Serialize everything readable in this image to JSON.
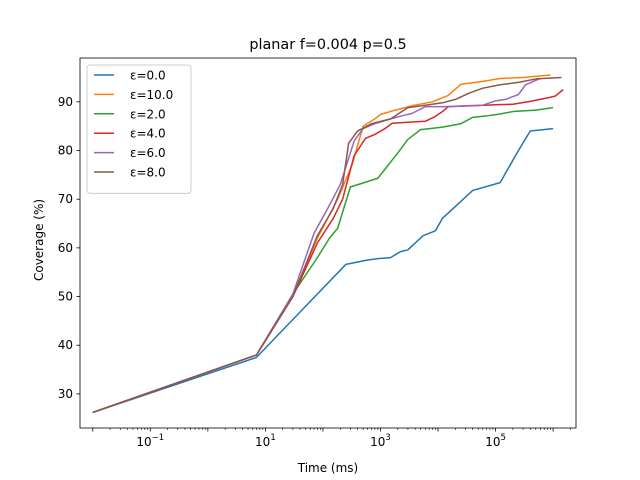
{
  "chart_data": {
    "type": "line",
    "title": "planar f=0.004 p=0.5",
    "xlabel": "Time (ms)",
    "ylabel": "Coverage (%)",
    "xscale": "log",
    "xlim": [
      0.006,
      2500000
    ],
    "ylim": [
      23,
      99
    ],
    "xticks": [
      {
        "value": 0.1,
        "base": "10",
        "exp": "−1"
      },
      {
        "value": 10,
        "base": "10",
        "exp": "1"
      },
      {
        "value": 1000,
        "base": "10",
        "exp": "3"
      },
      {
        "value": 100000,
        "base": "10",
        "exp": "5"
      }
    ],
    "yticks": [
      {
        "value": 30,
        "label": "30"
      },
      {
        "value": 40,
        "label": "40"
      },
      {
        "value": 50,
        "label": "50"
      },
      {
        "value": 60,
        "label": "60"
      },
      {
        "value": 70,
        "label": "70"
      },
      {
        "value": 80,
        "label": "80"
      },
      {
        "value": 90,
        "label": "90"
      }
    ],
    "grid": false,
    "legend_position": "top-left",
    "series": [
      {
        "name": "ε=0.0",
        "color": "#1f77b4",
        "points": [
          [
            0.01,
            26.2
          ],
          [
            7,
            37.5
          ],
          [
            50,
            48
          ],
          [
            250,
            56.6
          ],
          [
            600,
            57.5
          ],
          [
            900,
            57.8
          ],
          [
            1500,
            58
          ],
          [
            2200,
            59.2
          ],
          [
            3000,
            59.6
          ],
          [
            5500,
            62.5
          ],
          [
            9000,
            63.5
          ],
          [
            12000,
            66.1
          ],
          [
            18000,
            68
          ],
          [
            40000,
            71.8
          ],
          [
            120000,
            73.4
          ],
          [
            250000,
            80
          ],
          [
            400000,
            84
          ],
          [
            1000000,
            84.5
          ]
        ]
      },
      {
        "name": "ε=10.0",
        "color": "#ff7f0e",
        "points": [
          [
            0.01,
            26.2
          ],
          [
            7,
            38
          ],
          [
            30,
            50
          ],
          [
            80,
            62
          ],
          [
            180,
            70
          ],
          [
            320,
            77
          ],
          [
            500,
            85
          ],
          [
            800,
            86.5
          ],
          [
            1000,
            87.4
          ],
          [
            1800,
            88.3
          ],
          [
            2500,
            88.7
          ],
          [
            3500,
            89.2
          ],
          [
            8000,
            90
          ],
          [
            15000,
            91.3
          ],
          [
            25000,
            93.6
          ],
          [
            60000,
            94.2
          ],
          [
            120000,
            94.8
          ],
          [
            300000,
            95
          ],
          [
            900000,
            95.5
          ]
        ]
      },
      {
        "name": "ε=2.0",
        "color": "#2ca02c",
        "points": [
          [
            0.01,
            26.2
          ],
          [
            7,
            38
          ],
          [
            30,
            50.5
          ],
          [
            80,
            58
          ],
          [
            130,
            62
          ],
          [
            180,
            64
          ],
          [
            300,
            72.5
          ],
          [
            900,
            74.3
          ],
          [
            2000,
            79.5
          ],
          [
            3000,
            82.3
          ],
          [
            5000,
            84.3
          ],
          [
            12000,
            84.8
          ],
          [
            25000,
            85.5
          ],
          [
            40000,
            86.8
          ],
          [
            70000,
            87.1
          ],
          [
            120000,
            87.5
          ],
          [
            200000,
            88
          ],
          [
            500000,
            88.3
          ],
          [
            1000000,
            88.8
          ]
        ]
      },
      {
        "name": "ε=4.0",
        "color": "#d62728",
        "points": [
          [
            0.01,
            26.2
          ],
          [
            7,
            38
          ],
          [
            30,
            50
          ],
          [
            80,
            61
          ],
          [
            150,
            66
          ],
          [
            220,
            70
          ],
          [
            350,
            79
          ],
          [
            550,
            82.5
          ],
          [
            800,
            83.3
          ],
          [
            1200,
            84.5
          ],
          [
            1600,
            85.6
          ],
          [
            3000,
            85.8
          ],
          [
            6000,
            86
          ],
          [
            9000,
            87
          ],
          [
            12000,
            88
          ],
          [
            15000,
            89
          ],
          [
            40000,
            89.2
          ],
          [
            100000,
            89.4
          ],
          [
            200000,
            89.5
          ],
          [
            400000,
            90.1
          ],
          [
            800000,
            90.8
          ],
          [
            1100000,
            91.2
          ],
          [
            1500000,
            92.5
          ]
        ]
      },
      {
        "name": "ε=6.0",
        "color": "#9467bd",
        "points": [
          [
            0.01,
            26.2
          ],
          [
            7,
            38
          ],
          [
            30,
            50.5
          ],
          [
            70,
            63
          ],
          [
            120,
            68
          ],
          [
            200,
            73
          ],
          [
            350,
            82
          ],
          [
            500,
            84.5
          ],
          [
            800,
            85.5
          ],
          [
            1500,
            86.5
          ],
          [
            2500,
            87.2
          ],
          [
            3500,
            87.6
          ],
          [
            6000,
            89
          ],
          [
            15000,
            89
          ],
          [
            30000,
            89.2
          ],
          [
            60000,
            89.3
          ],
          [
            100000,
            90.2
          ],
          [
            150000,
            90.5
          ],
          [
            250000,
            91.5
          ],
          [
            330000,
            93.5
          ],
          [
            600000,
            94.8
          ]
        ]
      },
      {
        "name": "ε=8.0",
        "color": "#8c564b",
        "points": [
          [
            0.01,
            26.2
          ],
          [
            7,
            38
          ],
          [
            30,
            50
          ],
          [
            80,
            62.5
          ],
          [
            150,
            68
          ],
          [
            220,
            73
          ],
          [
            280,
            81.5
          ],
          [
            400,
            84
          ],
          [
            700,
            85.5
          ],
          [
            1500,
            86.5
          ],
          [
            3000,
            88.8
          ],
          [
            6000,
            89.3
          ],
          [
            12000,
            89.8
          ],
          [
            20000,
            90.5
          ],
          [
            35000,
            91.8
          ],
          [
            60000,
            92.8
          ],
          [
            120000,
            93.5
          ],
          [
            250000,
            94
          ],
          [
            500000,
            94.7
          ],
          [
            1400000,
            95
          ]
        ]
      }
    ]
  }
}
